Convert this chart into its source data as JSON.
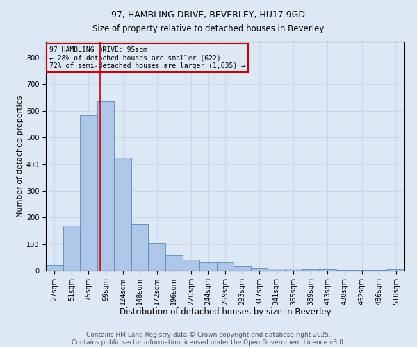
{
  "title_line1": "97, HAMBLING DRIVE, BEVERLEY, HU17 9GD",
  "title_line2": "Size of property relative to detached houses in Beverley",
  "xlabel": "Distribution of detached houses by size in Beverley",
  "ylabel": "Number of detached properties",
  "bar_labels": [
    "27sqm",
    "51sqm",
    "75sqm",
    "99sqm",
    "124sqm",
    "148sqm",
    "172sqm",
    "196sqm",
    "220sqm",
    "244sqm",
    "269sqm",
    "293sqm",
    "317sqm",
    "341sqm",
    "365sqm",
    "389sqm",
    "413sqm",
    "438sqm",
    "462sqm",
    "486sqm",
    "510sqm"
  ],
  "bar_values": [
    20,
    170,
    585,
    635,
    425,
    175,
    105,
    57,
    42,
    32,
    30,
    15,
    10,
    8,
    7,
    5,
    4,
    3,
    2,
    2,
    6
  ],
  "bar_color": "#aec6e8",
  "bar_edgecolor": "#5090c0",
  "bar_linewidth": 0.6,
  "vline_x_index": 2.68,
  "vline_color": "#cc0000",
  "annotation_text": "97 HAMBLING DRIVE: 95sqm\n← 28% of detached houses are smaller (622)\n72% of semi-detached houses are larger (1,635) →",
  "annotation_fontsize": 7.0,
  "annotation_edgecolor": "#cc0000",
  "ylim": [
    0,
    860
  ],
  "yticks": [
    0,
    100,
    200,
    300,
    400,
    500,
    600,
    700,
    800
  ],
  "grid_color": "#c8d8ea",
  "background_color": "#dce8f4",
  "title_fontsize": 9.0,
  "xlabel_fontsize": 8.5,
  "ylabel_fontsize": 8.0,
  "tick_fontsize": 7.0,
  "footer_text": "Contains HM Land Registry data © Crown copyright and database right 2025.\nContains public sector information licensed under the Open Government Licence v3.0.",
  "footer_fontsize": 6.5
}
